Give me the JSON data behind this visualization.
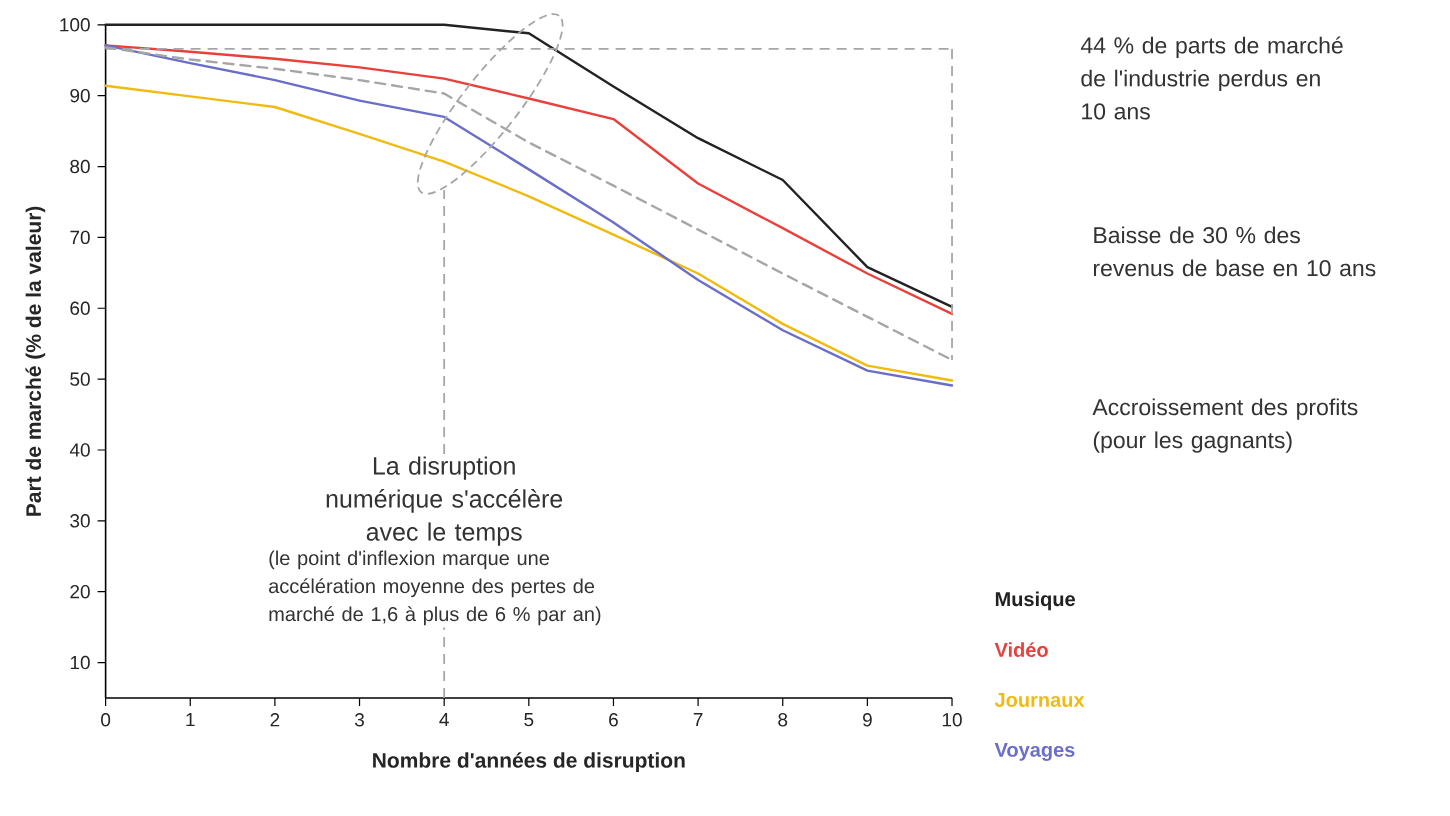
{
  "chart_data": {
    "type": "line",
    "xlabel": "Nombre d'années de disruption",
    "ylabel": "Part de marché (% de la valeur)",
    "x": [
      0,
      1,
      2,
      3,
      4,
      5,
      6,
      7,
      8,
      9,
      10
    ],
    "series": [
      {
        "name": "Musique",
        "color": "#222222",
        "values": [
          100,
          100,
          100,
          100,
          100,
          98.8,
          91.3,
          84.0,
          78.1,
          65.8,
          60.2
        ]
      },
      {
        "name": "Vidéo",
        "color": "#e8413c",
        "values": [
          97.1,
          96.2,
          95.2,
          94.0,
          92.4,
          89.6,
          86.7,
          77.6,
          71.3,
          64.9,
          59.2
        ]
      },
      {
        "name": "Journaux",
        "color": "#f0bb10",
        "values": [
          91.4,
          89.9,
          88.4,
          84.6,
          80.7,
          75.8,
          70.4,
          64.9,
          57.8,
          51.9,
          49.8
        ]
      },
      {
        "name": "Voyages",
        "color": "#6a6ec8",
        "values": [
          97.1,
          94.6,
          92.2,
          89.3,
          87.0,
          79.6,
          72.1,
          64.0,
          56.9,
          51.2,
          49.1
        ]
      },
      {
        "color": "#a6a6a6",
        "line_style": "dashed",
        "values": [
          96.8,
          95.1,
          93.8,
          92.2,
          90.3,
          83.4,
          77.3,
          71.1,
          64.9,
          58.8,
          52.7
        ]
      }
    ],
    "xlim": [
      0,
      10
    ],
    "ylim": [
      5,
      100
    ],
    "xticks": [
      0,
      1,
      2,
      3,
      4,
      5,
      6,
      7,
      8,
      9,
      10
    ],
    "yticks": [
      10,
      20,
      30,
      40,
      50,
      60,
      70,
      80,
      90,
      100
    ],
    "legend": "bottom right",
    "ref_lines": [
      {
        "axis": "x",
        "value": 4,
        "color": "#a6a6a6",
        "line_style": "dashed"
      },
      {
        "axis": "y",
        "value": 96.6,
        "color": "#a6a6a6",
        "line_style": "dashed"
      }
    ],
    "annotations": [
      "La disruption numérique s'accélère avec le temps",
      "(le point d'inflexion marque une accélération moyenne des pertes de marché de 1,6 à plus de 6 % par an)",
      "44 % de parts de marché de l'industrie perdus en 10 ans",
      "Baisse de 30 % des revenus de base en 10 ans",
      "Accroissement des profits (pour les gagnants)"
    ]
  }
}
